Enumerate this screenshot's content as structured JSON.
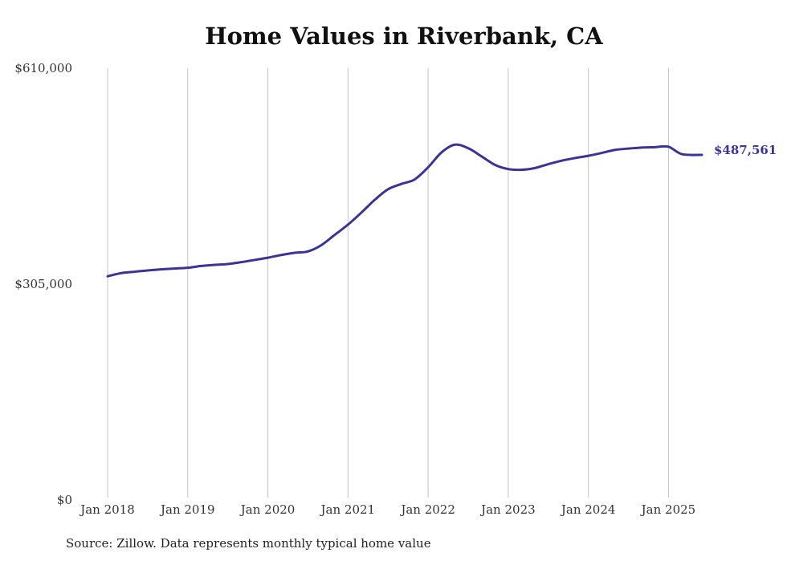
{
  "chart_data": {
    "type": "line",
    "title": "Home Values in Riverbank, CA",
    "xlabel": "",
    "ylabel": "",
    "ylim": [
      0,
      610000
    ],
    "y_ticks": [
      {
        "value": 0,
        "label": "$0"
      },
      {
        "value": 305000,
        "label": "$305,000"
      },
      {
        "value": 610000,
        "label": "$610,000"
      }
    ],
    "x_ticks": [
      {
        "value": "2018-01",
        "label": "Jan 2018"
      },
      {
        "value": "2019-01",
        "label": "Jan 2019"
      },
      {
        "value": "2020-01",
        "label": "Jan 2020"
      },
      {
        "value": "2021-01",
        "label": "Jan 2021"
      },
      {
        "value": "2022-01",
        "label": "Jan 2022"
      },
      {
        "value": "2023-01",
        "label": "Jan 2023"
      },
      {
        "value": "2024-01",
        "label": "Jan 2024"
      },
      {
        "value": "2025-01",
        "label": "Jan 2025"
      }
    ],
    "xlim": [
      "2018-01",
      "2025-06"
    ],
    "grid": "vertical",
    "series": [
      {
        "color": "#3a3492",
        "x": [
          "2018-01",
          "2018-03",
          "2018-05",
          "2018-07",
          "2018-09",
          "2018-11",
          "2019-01",
          "2019-03",
          "2019-05",
          "2019-07",
          "2019-09",
          "2019-11",
          "2020-01",
          "2020-03",
          "2020-05",
          "2020-07",
          "2020-09",
          "2020-11",
          "2021-01",
          "2021-03",
          "2021-05",
          "2021-07",
          "2021-09",
          "2021-11",
          "2022-01",
          "2022-03",
          "2022-05",
          "2022-07",
          "2022-09",
          "2022-11",
          "2023-01",
          "2023-03",
          "2023-05",
          "2023-07",
          "2023-09",
          "2023-11",
          "2024-01",
          "2024-03",
          "2024-05",
          "2024-07",
          "2024-09",
          "2024-11",
          "2025-01",
          "2025-03",
          "2025-06"
        ],
        "values": [
          316000,
          320500,
          322500,
          324300,
          325800,
          327000,
          328100,
          330600,
          332200,
          333400,
          336000,
          339100,
          342300,
          346100,
          349200,
          351200,
          360000,
          374500,
          389000,
          406000,
          424000,
          439000,
          446500,
          453000,
          470000,
          491000,
          502000,
          497000,
          485500,
          473500,
          467500,
          466500,
          469000,
          474500,
          479400,
          483100,
          486300,
          490300,
          494600,
          496500,
          497900,
          498500,
          499100,
          488600,
          487561
        ]
      }
    ],
    "end_label": "$487,561"
  },
  "source_note": "Source: Zillow. Data represents monthly typical home value"
}
